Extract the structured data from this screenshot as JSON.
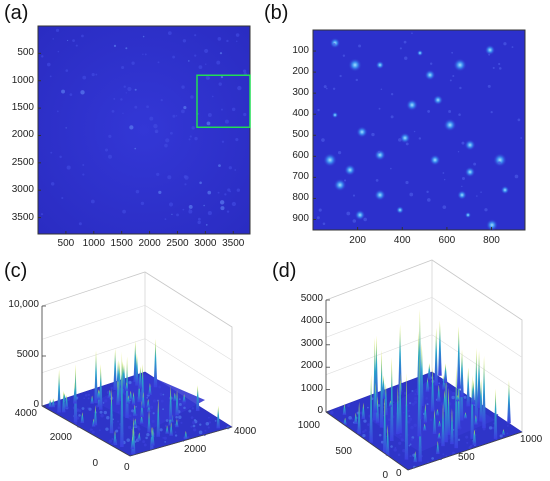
{
  "panels": {
    "a": {
      "letter": "(a)"
    },
    "b": {
      "letter": "(b)"
    },
    "c": {
      "letter": "(c)"
    },
    "d": {
      "letter": "(d)"
    }
  },
  "colors": {
    "background_blue": "#2b2fc8",
    "highlight_box": "#22dd55",
    "spike_low": "#3b3fe0",
    "spike_high": "#eeee30"
  },
  "chart_data": [
    {
      "type": "heatmap",
      "panel": "a",
      "x_ticks": [
        "500",
        "1000",
        "1500",
        "2000",
        "2500",
        "3000",
        "3500"
      ],
      "y_ticks": [
        "500",
        "1000",
        "1500",
        "2000",
        "2500",
        "3000",
        "3500"
      ],
      "xlim": [
        0,
        3800
      ],
      "ylim": [
        0,
        3800
      ],
      "annotation": {
        "shape": "rectangle",
        "x_range": [
          2850,
          3800
        ],
        "y_range": [
          900,
          1850
        ]
      }
    },
    {
      "type": "heatmap",
      "panel": "b",
      "x_ticks": [
        "200",
        "400",
        "600",
        "800"
      ],
      "y_ticks": [
        "100",
        "200",
        "300",
        "400",
        "500",
        "600",
        "700",
        "800",
        "900"
      ],
      "xlim": [
        0,
        950
      ],
      "ylim": [
        0,
        950
      ]
    },
    {
      "type": "surface",
      "panel": "c",
      "z_ticks": [
        "0",
        "5000",
        "10,000"
      ],
      "y_ticks": [
        "4000",
        "2000",
        "0"
      ],
      "x_ticks": [
        "0",
        "2000",
        "4000"
      ],
      "zlim": [
        0,
        10000
      ]
    },
    {
      "type": "surface",
      "panel": "d",
      "z_ticks": [
        "0",
        "1000",
        "2000",
        "3000",
        "4000",
        "5000"
      ],
      "y_ticks": [
        "1000",
        "500",
        "0"
      ],
      "x_ticks": [
        "0",
        "500",
        "1000"
      ],
      "zlim": [
        0,
        5000
      ]
    }
  ]
}
